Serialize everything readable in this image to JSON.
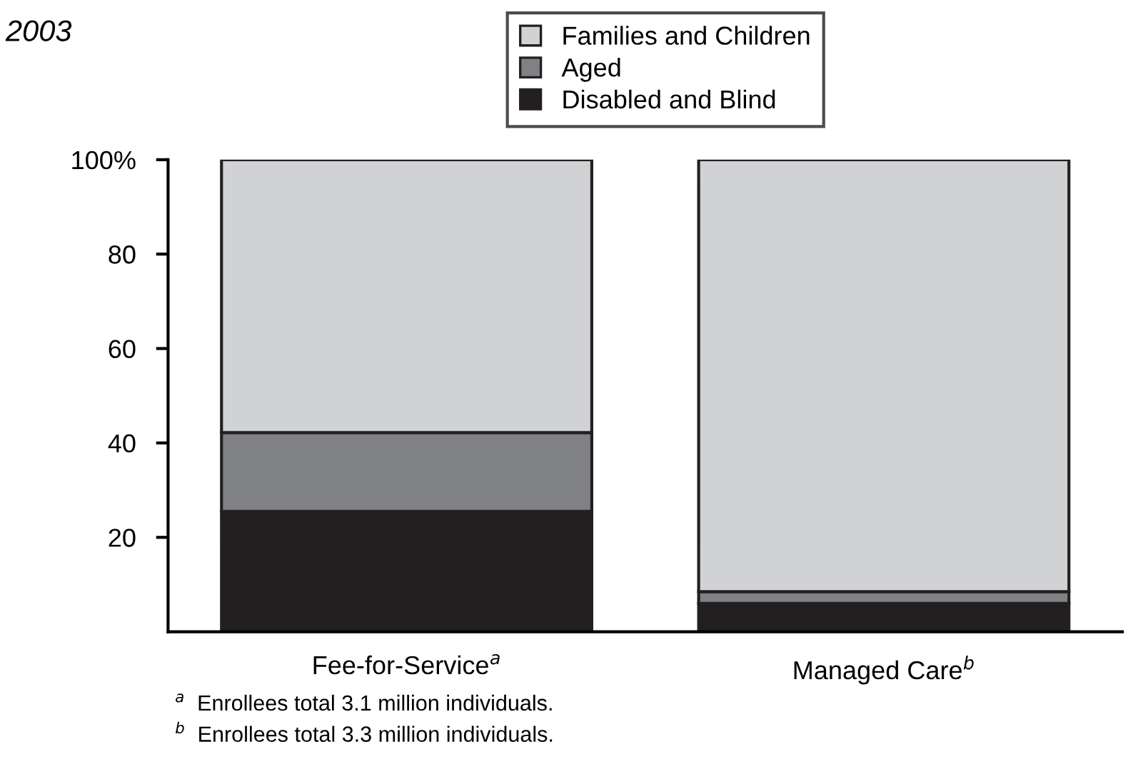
{
  "chart_data": {
    "type": "bar",
    "title": "2003",
    "stacked": true,
    "categories": [
      "Fee-for-Service$^{a}$",
      "Managed Care$^{b}$"
    ],
    "series": [
      {
        "name": "Disabled and Blind",
        "color": "#231f20",
        "values": [
          25.5,
          6
        ]
      },
      {
        "name": "Aged",
        "color": "#808184",
        "values": [
          16.7,
          2.5
        ]
      },
      {
        "name": "Families and Children",
        "color": "#d1d2d4",
        "values": [
          57.8,
          91.5
        ]
      }
    ],
    "ylim": [
      0,
      100
    ],
    "yticks": [
      {
        "value": 100,
        "label": "100%"
      },
      80,
      60,
      40,
      20
    ],
    "grid": false,
    "legend": "top",
    "annotations": [
      "$^{a}$  Enrollees total 3.1 million individuals.",
      "$^{b}$  Enrollees total 3.3 million individuals."
    ]
  }
}
